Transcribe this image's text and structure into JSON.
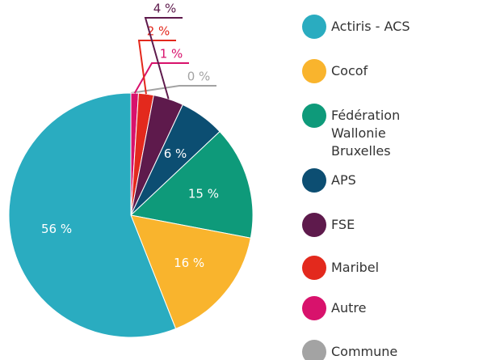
{
  "chart_data": {
    "type": "pie",
    "categories": [
      "Actiris - ACS",
      "Cocof",
      "Fédération Wallonie Bruxelles",
      "APS",
      "FSE",
      "Maribel",
      "Autre",
      "Commune"
    ],
    "values": [
      56,
      16,
      15,
      6,
      4,
      2,
      1,
      0
    ],
    "value_labels": [
      "56 %",
      "16 %",
      "15 %",
      "6 %",
      "4 %",
      "2 %",
      "1 %",
      "0 %"
    ],
    "colors": [
      "#2aacc0",
      "#f9b42d",
      "#0e9a7a",
      "#0c4e72",
      "#5e1a4c",
      "#e3291d",
      "#d8126c",
      "#a3a3a3"
    ],
    "legend": "right"
  }
}
